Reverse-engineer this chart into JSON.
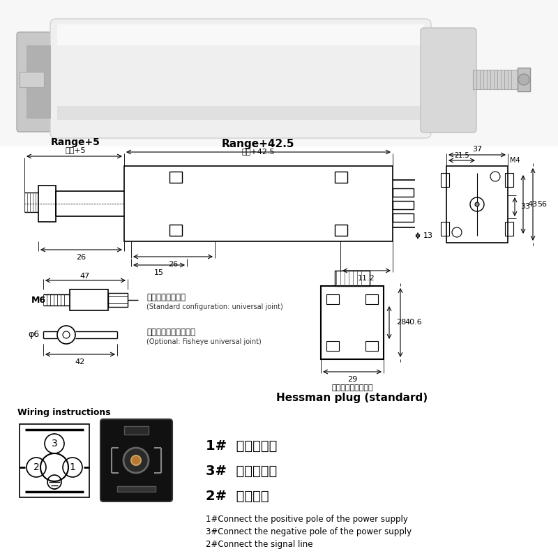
{
  "bg_color": "#ffffff",
  "title": "Range+42.5",
  "subtitle": "量程+42.5",
  "range5_label": "Range+5",
  "range5_sub": "量程+5",
  "dim_26_left": "26",
  "dim_26_bottom": "26",
  "dim_15": "15",
  "dim_11_2": "11.2",
  "dim_13": "13",
  "dim_33": "33",
  "dim_37": "37",
  "dim_21_5": "21.5",
  "dim_M4": "M4",
  "dim_43": "43",
  "dim_56": "56",
  "dim_47": "47",
  "dim_42": "42",
  "dim_M6": "M6",
  "dim_phi6": "φ6",
  "dim_28": "28",
  "dim_29": "29",
  "dim_40_6": "40.6",
  "label_standard_zh": "（标配：万向节）",
  "label_standard_en": "(Standard configuration: universal joint)",
  "label_optional_zh": "（可选：鱼眼万向节）",
  "label_optional_en": "(Optional: Fisheye universal joint)",
  "hessman_zh": "赫斯曼插头（标配）",
  "hessman_en": "Hessman plug (standard)",
  "wiring_title": "Wiring instructions",
  "wire1_zh": "1#  接电源正极",
  "wire3_zh": "3#  接电源负极",
  "wire2_zh": "2#  接信号线",
  "wire1_en": "1#Connect the positive pole of the power supply",
  "wire3_en": "3#Connect the negative pole of the power supply",
  "wire2_en": "2#Connect the signal line"
}
